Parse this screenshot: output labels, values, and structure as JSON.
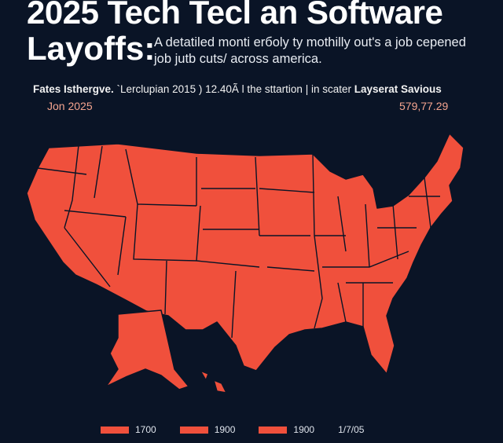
{
  "header": {
    "title_line1": "2025 Tech Tecl an Software",
    "title_line2": "Layoffs:",
    "subtitle": "A detatiled monti erбoly ty mothilly out's a job cepened job jutb cuts/ across america."
  },
  "info": {
    "lead": "Fates Isthergve.",
    "middle": " `Lerclupian 2015 ) 12.40Ã l the sttartion | in scater ",
    "trail": "Layserat Savious"
  },
  "date_label": "Jon 2025",
  "total_value": "579,77.29",
  "map": {
    "fill_color": "#f0503c",
    "border_color": "#0a1426",
    "background": "#0a1426"
  },
  "legend": [
    {
      "label": "1700",
      "swatch": true
    },
    {
      "label": "1900",
      "swatch": true
    },
    {
      "label": "1900",
      "swatch": true
    },
    {
      "label": "1/7/05",
      "swatch": false
    }
  ]
}
